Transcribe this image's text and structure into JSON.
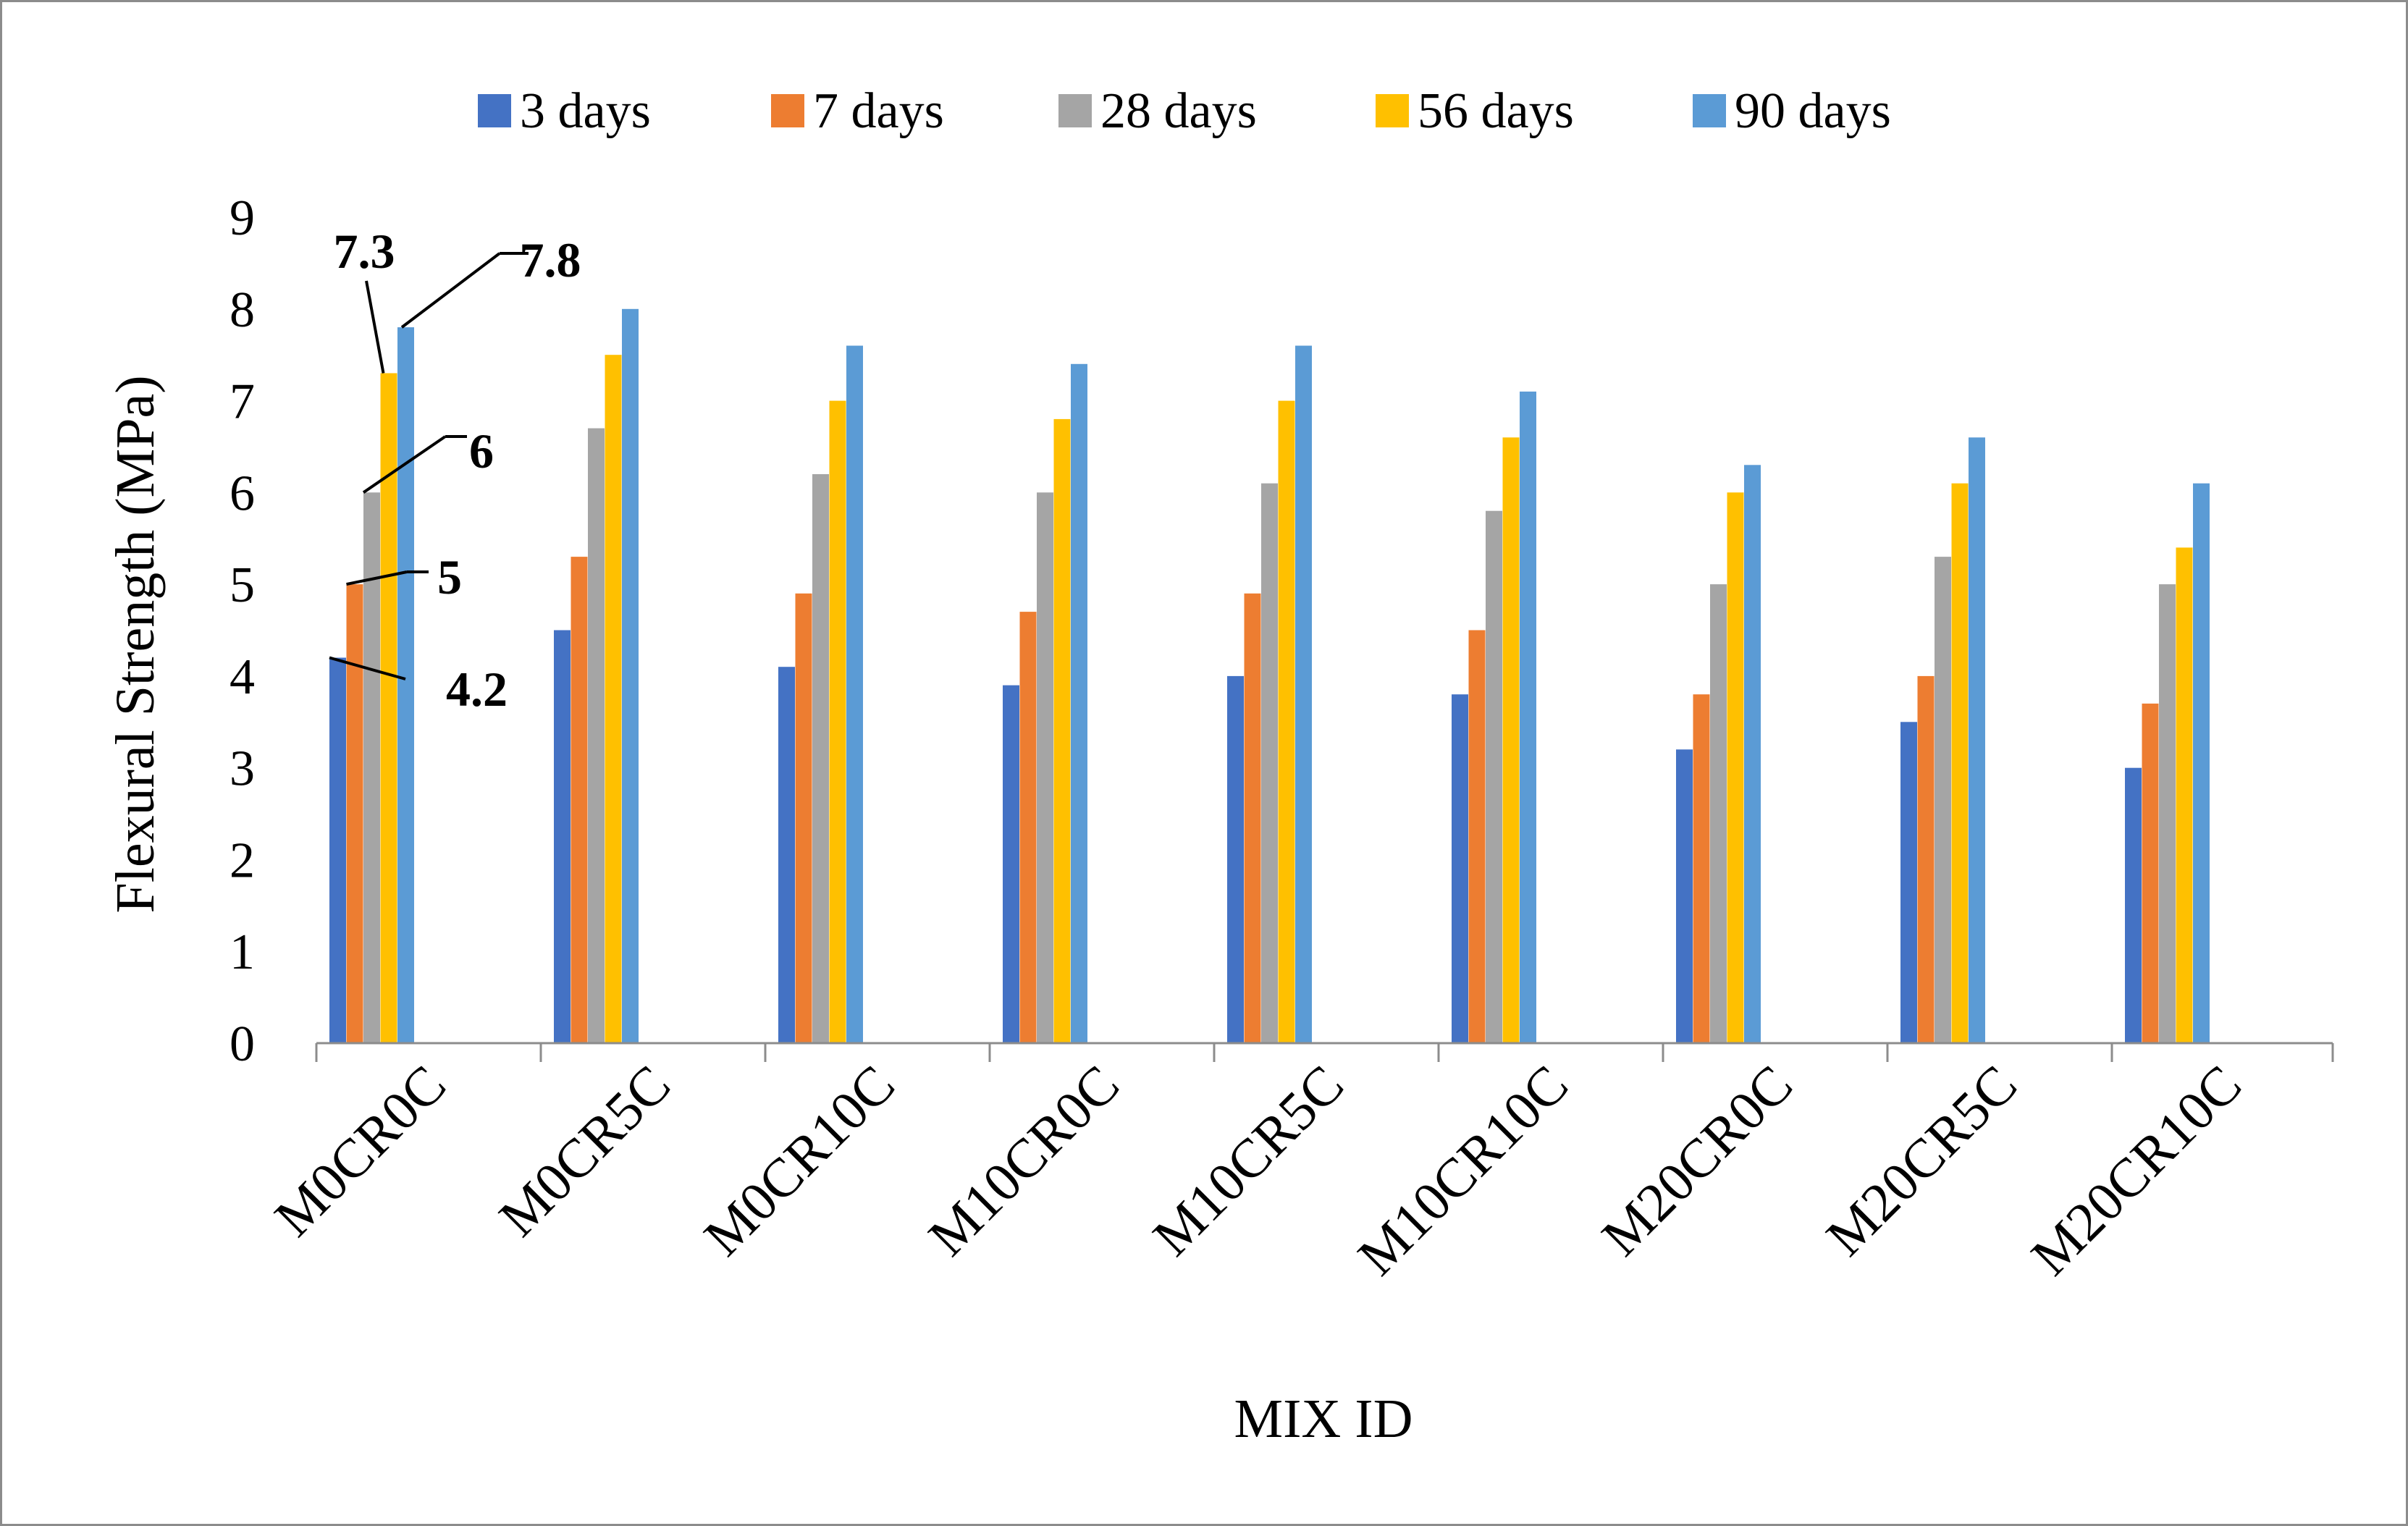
{
  "chart_data": {
    "type": "bar",
    "title": "",
    "xlabel": "MIX ID",
    "ylabel": "Flexural Strength (MPa)",
    "ylim": [
      0,
      9
    ],
    "yticks": [
      0,
      1,
      2,
      3,
      4,
      5,
      6,
      7,
      8,
      9
    ],
    "grid": false,
    "legend_position": "top",
    "categories": [
      "M0CR0C",
      "M0CR5C",
      "M0CR10C",
      "M10CR0C",
      "M10CR5C",
      "M10CR10C",
      "M20CR0C",
      "M20CR5C",
      "M20CR10C"
    ],
    "series": [
      {
        "name": "3 days",
        "color": "#4472C4",
        "values": [
          4.2,
          4.5,
          4.1,
          3.9,
          4.0,
          3.8,
          3.2,
          3.5,
          3.0
        ]
      },
      {
        "name": "7 days",
        "color": "#ED7D31",
        "values": [
          5.0,
          5.3,
          4.9,
          4.7,
          4.9,
          4.5,
          3.8,
          4.0,
          3.7
        ]
      },
      {
        "name": "28 days",
        "color": "#A5A5A5",
        "values": [
          6.0,
          6.7,
          6.2,
          6.0,
          6.1,
          5.8,
          5.0,
          5.3,
          5.0
        ]
      },
      {
        "name": "56 days",
        "color": "#FFC000",
        "values": [
          7.3,
          7.5,
          7.0,
          6.8,
          7.0,
          6.6,
          6.0,
          6.1,
          5.4
        ]
      },
      {
        "name": "90 days",
        "color": "#5B9BD5",
        "values": [
          7.8,
          8.0,
          7.6,
          7.4,
          7.6,
          7.1,
          6.3,
          6.6,
          6.1
        ]
      }
    ],
    "annotations": [
      {
        "label": "4.2",
        "series": 0,
        "category": 0
      },
      {
        "label": "5",
        "series": 1,
        "category": 0
      },
      {
        "label": "6",
        "series": 2,
        "category": 0
      },
      {
        "label": "7.3",
        "series": 3,
        "category": 0
      },
      {
        "label": "7.8",
        "series": 4,
        "category": 0
      }
    ]
  }
}
